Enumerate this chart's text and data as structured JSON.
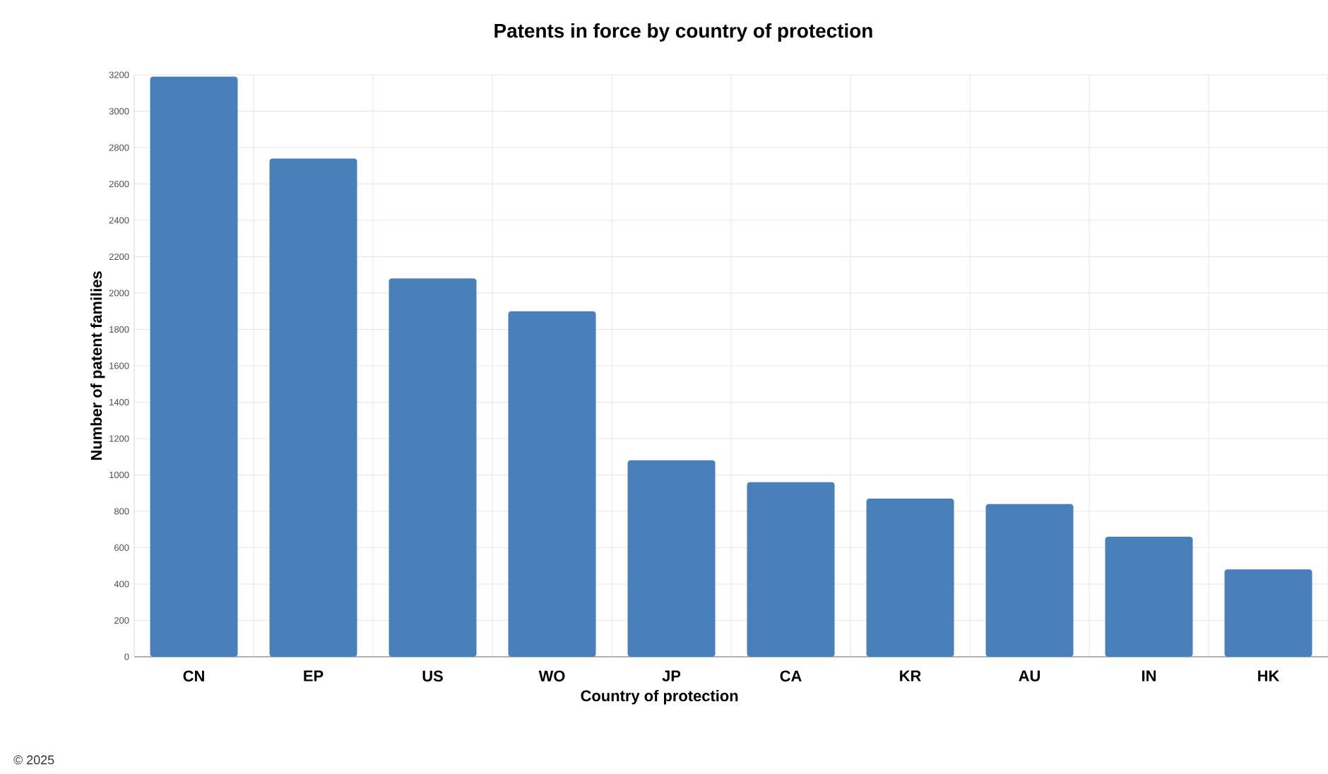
{
  "chart_data": {
    "type": "bar",
    "title": "Patents in force by country of protection",
    "xlabel": "Country of protection",
    "ylabel": "Number of patent families",
    "categories": [
      "CN",
      "EP",
      "US",
      "WO",
      "JP",
      "CA",
      "KR",
      "AU",
      "IN",
      "HK"
    ],
    "values": [
      3190,
      2740,
      2080,
      1900,
      1080,
      960,
      870,
      840,
      660,
      480
    ],
    "color": "#4a80b9",
    "ylim": [
      0,
      3200
    ],
    "yticks": [
      0,
      200,
      400,
      600,
      800,
      1000,
      1200,
      1400,
      1600,
      1800,
      2000,
      2200,
      2400,
      2600,
      2800,
      3000,
      3200
    ],
    "grid": true,
    "annotations": [
      "© 2025"
    ]
  }
}
